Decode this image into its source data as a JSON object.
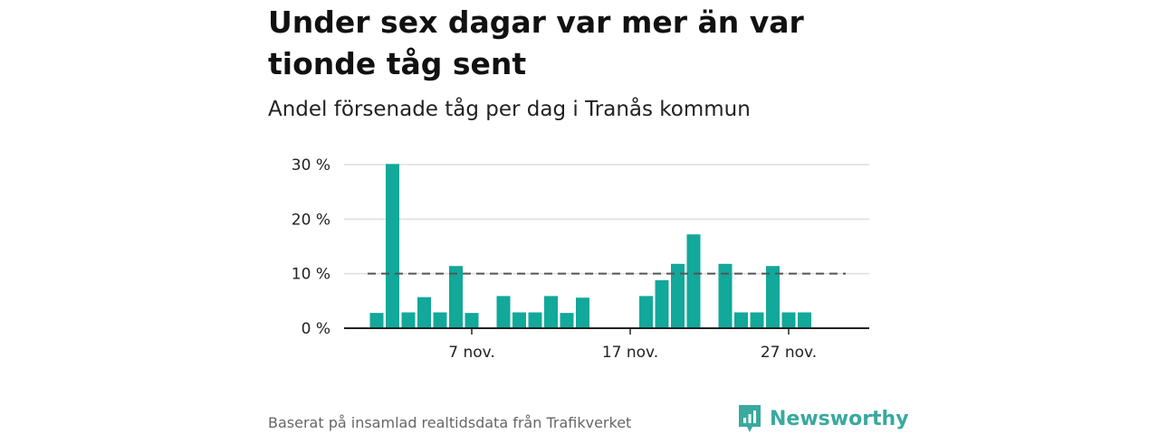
{
  "title": "Under sex dagar var mer än var tionde tåg sent",
  "subtitle": "Andel försenade tåg per dag i Tranås kommun",
  "source": "Baserat på insamlad realtidsdata från Trafikverket",
  "brand": {
    "name": "Newsworthy",
    "icon": "newsworthy-logo-icon"
  },
  "colors": {
    "bar": "#12a89a",
    "reference_line": "#555555",
    "grid": "#dddddd",
    "brand": "#3aa99f"
  },
  "chart_data": {
    "type": "bar",
    "title": "Under sex dagar var mer än var tionde tåg sent",
    "subtitle": "Andel försenade tåg per dag i Tranås kommun",
    "x": [
      "2024-11-01",
      "2024-11-02",
      "2024-11-03",
      "2024-11-04",
      "2024-11-05",
      "2024-11-06",
      "2024-11-07",
      "2024-11-08",
      "2024-11-09",
      "2024-11-10",
      "2024-11-11",
      "2024-11-12",
      "2024-11-13",
      "2024-11-14",
      "2024-11-15",
      "2024-11-16",
      "2024-11-17",
      "2024-11-18",
      "2024-11-19",
      "2024-11-20",
      "2024-11-21",
      "2024-11-22",
      "2024-11-23",
      "2024-11-24",
      "2024-11-25",
      "2024-11-26",
      "2024-11-27",
      "2024-11-28",
      "2024-11-29",
      "2024-11-30"
    ],
    "values": [
      2.8,
      30.1,
      2.9,
      5.7,
      2.9,
      11.4,
      2.8,
      null,
      5.9,
      2.9,
      2.9,
      5.9,
      2.8,
      5.6,
      null,
      null,
      null,
      5.9,
      8.8,
      11.8,
      17.2,
      null,
      11.8,
      2.9,
      2.9,
      11.4,
      2.9,
      2.9,
      null,
      null
    ],
    "xticks": [
      "7 nov.",
      "17 nov.",
      "27 nov."
    ],
    "xtick_dates": [
      "2024-11-07",
      "2024-11-17",
      "2024-11-27"
    ],
    "yticks": [
      "0 %",
      "10 %",
      "20 %",
      "30 %"
    ],
    "ytick_values": [
      0,
      10,
      20,
      30
    ],
    "ylim": [
      0,
      30
    ],
    "reference_line": 10,
    "grid": true,
    "xlabel": "",
    "ylabel": ""
  }
}
